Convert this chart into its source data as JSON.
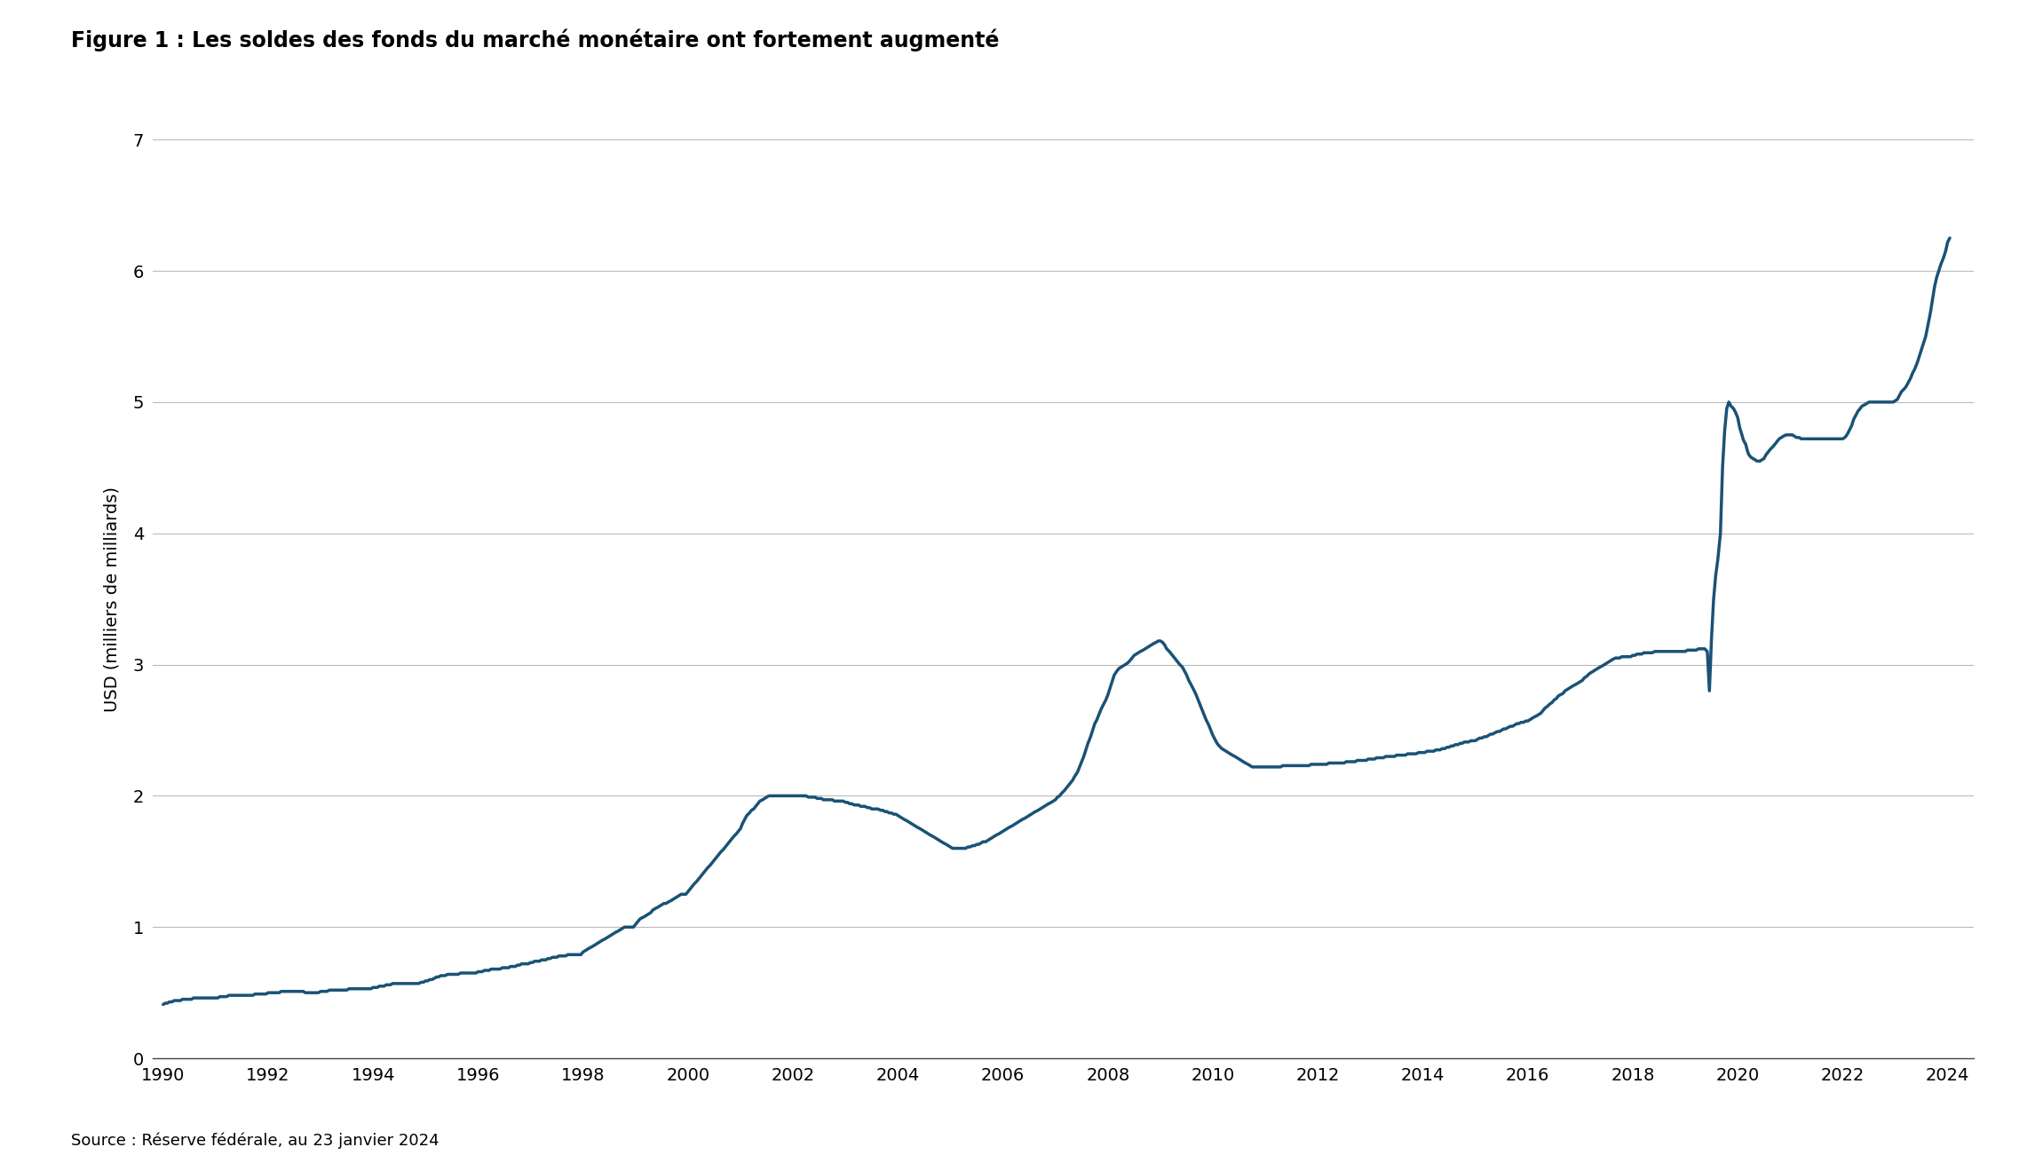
{
  "title": "Figure 1 : Les soldes des fonds du marché monétaire ont fortement augmenté",
  "ylabel": "USD (milliers de milliards)",
  "source": "Source : Réserve fédérale, au 23 janvier 2024",
  "line_color": "#1a5276",
  "background_color": "#ffffff",
  "ylim": [
    0,
    7
  ],
  "yticks": [
    0,
    1,
    2,
    3,
    4,
    5,
    6,
    7
  ],
  "title_fontsize": 17,
  "label_fontsize": 14,
  "tick_fontsize": 14,
  "source_fontsize": 13,
  "line_width": 2.5,
  "dates": [
    1990.0,
    1990.04,
    1990.08,
    1990.12,
    1990.17,
    1990.21,
    1990.25,
    1990.29,
    1990.33,
    1990.37,
    1990.42,
    1990.46,
    1990.5,
    1990.54,
    1990.58,
    1990.62,
    1990.67,
    1990.71,
    1990.75,
    1990.79,
    1990.83,
    1990.87,
    1990.92,
    1990.96,
    1991.0,
    1991.04,
    1991.08,
    1991.12,
    1991.17,
    1991.21,
    1991.25,
    1991.29,
    1991.33,
    1991.37,
    1991.42,
    1991.46,
    1991.5,
    1991.54,
    1991.58,
    1991.62,
    1991.67,
    1991.71,
    1991.75,
    1991.79,
    1991.83,
    1991.87,
    1991.92,
    1991.96,
    1992.0,
    1992.04,
    1992.08,
    1992.12,
    1992.17,
    1992.21,
    1992.25,
    1992.29,
    1992.33,
    1992.37,
    1992.42,
    1992.46,
    1992.5,
    1992.54,
    1992.58,
    1992.62,
    1992.67,
    1992.71,
    1992.75,
    1992.79,
    1992.83,
    1992.87,
    1992.92,
    1992.96,
    1993.0,
    1993.04,
    1993.08,
    1993.12,
    1993.17,
    1993.21,
    1993.25,
    1993.29,
    1993.33,
    1993.37,
    1993.42,
    1993.46,
    1993.5,
    1993.54,
    1993.58,
    1993.62,
    1993.67,
    1993.71,
    1993.75,
    1993.79,
    1993.83,
    1993.87,
    1993.92,
    1993.96,
    1994.0,
    1994.04,
    1994.08,
    1994.12,
    1994.17,
    1994.21,
    1994.25,
    1994.29,
    1994.33,
    1994.37,
    1994.42,
    1994.46,
    1994.5,
    1994.54,
    1994.58,
    1994.62,
    1994.67,
    1994.71,
    1994.75,
    1994.79,
    1994.83,
    1994.87,
    1994.92,
    1994.96,
    1995.0,
    1995.04,
    1995.08,
    1995.12,
    1995.17,
    1995.21,
    1995.25,
    1995.29,
    1995.33,
    1995.37,
    1995.42,
    1995.46,
    1995.5,
    1995.54,
    1995.58,
    1995.62,
    1995.67,
    1995.71,
    1995.75,
    1995.79,
    1995.83,
    1995.87,
    1995.92,
    1995.96,
    1996.0,
    1996.04,
    1996.08,
    1996.12,
    1996.17,
    1996.21,
    1996.25,
    1996.29,
    1996.33,
    1996.37,
    1996.42,
    1996.46,
    1996.5,
    1996.54,
    1996.58,
    1996.62,
    1996.67,
    1996.71,
    1996.75,
    1996.79,
    1996.83,
    1996.87,
    1996.92,
    1996.96,
    1997.0,
    1997.04,
    1997.08,
    1997.12,
    1997.17,
    1997.21,
    1997.25,
    1997.29,
    1997.33,
    1997.37,
    1997.42,
    1997.46,
    1997.5,
    1997.54,
    1997.58,
    1997.62,
    1997.67,
    1997.71,
    1997.75,
    1997.79,
    1997.83,
    1997.87,
    1997.92,
    1997.96,
    1998.0,
    1998.04,
    1998.08,
    1998.12,
    1998.17,
    1998.21,
    1998.25,
    1998.29,
    1998.33,
    1998.37,
    1998.42,
    1998.46,
    1998.5,
    1998.54,
    1998.58,
    1998.62,
    1998.67,
    1998.71,
    1998.75,
    1998.79,
    1998.83,
    1998.87,
    1998.92,
    1998.96,
    1999.0,
    1999.04,
    1999.08,
    1999.12,
    1999.17,
    1999.21,
    1999.25,
    1999.29,
    1999.33,
    1999.37,
    1999.42,
    1999.46,
    1999.5,
    1999.54,
    1999.58,
    1999.62,
    1999.67,
    1999.71,
    1999.75,
    1999.79,
    1999.83,
    1999.87,
    1999.92,
    1999.96,
    2000.0,
    2000.04,
    2000.08,
    2000.12,
    2000.17,
    2000.21,
    2000.25,
    2000.29,
    2000.33,
    2000.37,
    2000.42,
    2000.46,
    2000.5,
    2000.54,
    2000.58,
    2000.62,
    2000.67,
    2000.71,
    2000.75,
    2000.79,
    2000.83,
    2000.87,
    2000.92,
    2000.96,
    2001.0,
    2001.04,
    2001.08,
    2001.12,
    2001.17,
    2001.21,
    2001.25,
    2001.29,
    2001.33,
    2001.37,
    2001.42,
    2001.46,
    2001.5,
    2001.54,
    2001.58,
    2001.62,
    2001.67,
    2001.71,
    2001.75,
    2001.79,
    2001.83,
    2001.87,
    2001.92,
    2001.96,
    2002.0,
    2002.04,
    2002.08,
    2002.12,
    2002.17,
    2002.21,
    2002.25,
    2002.29,
    2002.33,
    2002.37,
    2002.42,
    2002.46,
    2002.5,
    2002.54,
    2002.58,
    2002.62,
    2002.67,
    2002.71,
    2002.75,
    2002.79,
    2002.83,
    2002.87,
    2002.92,
    2002.96,
    2003.0,
    2003.04,
    2003.08,
    2003.12,
    2003.17,
    2003.21,
    2003.25,
    2003.29,
    2003.33,
    2003.37,
    2003.42,
    2003.46,
    2003.5,
    2003.54,
    2003.58,
    2003.62,
    2003.67,
    2003.71,
    2003.75,
    2003.79,
    2003.83,
    2003.87,
    2003.92,
    2003.96,
    2004.0,
    2004.04,
    2004.08,
    2004.12,
    2004.17,
    2004.21,
    2004.25,
    2004.29,
    2004.33,
    2004.37,
    2004.42,
    2004.46,
    2004.5,
    2004.54,
    2004.58,
    2004.62,
    2004.67,
    2004.71,
    2004.75,
    2004.79,
    2004.83,
    2004.87,
    2004.92,
    2004.96,
    2005.0,
    2005.04,
    2005.08,
    2005.12,
    2005.17,
    2005.21,
    2005.25,
    2005.29,
    2005.33,
    2005.37,
    2005.42,
    2005.46,
    2005.5,
    2005.54,
    2005.58,
    2005.62,
    2005.67,
    2005.71,
    2005.75,
    2005.79,
    2005.83,
    2005.87,
    2005.92,
    2005.96,
    2006.0,
    2006.04,
    2006.08,
    2006.12,
    2006.17,
    2006.21,
    2006.25,
    2006.29,
    2006.33,
    2006.37,
    2006.42,
    2006.46,
    2006.5,
    2006.54,
    2006.58,
    2006.62,
    2006.67,
    2006.71,
    2006.75,
    2006.79,
    2006.83,
    2006.87,
    2006.92,
    2006.96,
    2007.0,
    2007.04,
    2007.08,
    2007.12,
    2007.17,
    2007.21,
    2007.25,
    2007.29,
    2007.33,
    2007.37,
    2007.42,
    2007.46,
    2007.5,
    2007.54,
    2007.58,
    2007.62,
    2007.67,
    2007.71,
    2007.75,
    2007.79,
    2007.83,
    2007.87,
    2007.92,
    2007.96,
    2008.0,
    2008.04,
    2008.08,
    2008.12,
    2008.17,
    2008.21,
    2008.25,
    2008.29,
    2008.33,
    2008.37,
    2008.42,
    2008.46,
    2008.5,
    2008.54,
    2008.58,
    2008.62,
    2008.67,
    2008.71,
    2008.75,
    2008.79,
    2008.83,
    2008.87,
    2008.92,
    2008.96,
    2009.0,
    2009.04,
    2009.08,
    2009.12,
    2009.17,
    2009.21,
    2009.25,
    2009.29,
    2009.33,
    2009.37,
    2009.42,
    2009.46,
    2009.5,
    2009.54,
    2009.58,
    2009.62,
    2009.67,
    2009.71,
    2009.75,
    2009.79,
    2009.83,
    2009.87,
    2009.92,
    2009.96,
    2010.0,
    2010.04,
    2010.08,
    2010.12,
    2010.17,
    2010.21,
    2010.25,
    2010.29,
    2010.33,
    2010.37,
    2010.42,
    2010.46,
    2010.5,
    2010.54,
    2010.58,
    2010.62,
    2010.67,
    2010.71,
    2010.75,
    2010.79,
    2010.83,
    2010.87,
    2010.92,
    2010.96,
    2011.0,
    2011.04,
    2011.08,
    2011.12,
    2011.17,
    2011.21,
    2011.25,
    2011.29,
    2011.33,
    2011.37,
    2011.42,
    2011.46,
    2011.5,
    2011.54,
    2011.58,
    2011.62,
    2011.67,
    2011.71,
    2011.75,
    2011.79,
    2011.83,
    2011.87,
    2011.92,
    2011.96,
    2012.0,
    2012.04,
    2012.08,
    2012.12,
    2012.17,
    2012.21,
    2012.25,
    2012.29,
    2012.33,
    2012.37,
    2012.42,
    2012.46,
    2012.5,
    2012.54,
    2012.58,
    2012.62,
    2012.67,
    2012.71,
    2012.75,
    2012.79,
    2012.83,
    2012.87,
    2012.92,
    2012.96,
    2013.0,
    2013.04,
    2013.08,
    2013.12,
    2013.17,
    2013.21,
    2013.25,
    2013.29,
    2013.33,
    2013.37,
    2013.42,
    2013.46,
    2013.5,
    2013.54,
    2013.58,
    2013.62,
    2013.67,
    2013.71,
    2013.75,
    2013.79,
    2013.83,
    2013.87,
    2013.92,
    2013.96,
    2014.0,
    2014.04,
    2014.08,
    2014.12,
    2014.17,
    2014.21,
    2014.25,
    2014.29,
    2014.33,
    2014.37,
    2014.42,
    2014.46,
    2014.5,
    2014.54,
    2014.58,
    2014.62,
    2014.67,
    2014.71,
    2014.75,
    2014.79,
    2014.83,
    2014.87,
    2014.92,
    2014.96,
    2015.0,
    2015.04,
    2015.08,
    2015.12,
    2015.17,
    2015.21,
    2015.25,
    2015.29,
    2015.33,
    2015.37,
    2015.42,
    2015.46,
    2015.5,
    2015.54,
    2015.58,
    2015.62,
    2015.67,
    2015.71,
    2015.75,
    2015.79,
    2015.83,
    2015.87,
    2015.92,
    2015.96,
    2016.0,
    2016.04,
    2016.08,
    2016.12,
    2016.17,
    2016.21,
    2016.25,
    2016.29,
    2016.33,
    2016.37,
    2016.42,
    2016.46,
    2016.5,
    2016.54,
    2016.58,
    2016.62,
    2016.67,
    2016.71,
    2016.75,
    2016.79,
    2016.83,
    2016.87,
    2016.92,
    2016.96,
    2017.0,
    2017.04,
    2017.08,
    2017.12,
    2017.17,
    2017.21,
    2017.25,
    2017.29,
    2017.33,
    2017.37,
    2017.42,
    2017.46,
    2017.5,
    2017.54,
    2017.58,
    2017.62,
    2017.67,
    2017.71,
    2017.75,
    2017.79,
    2017.83,
    2017.87,
    2017.92,
    2017.96,
    2018.0,
    2018.04,
    2018.08,
    2018.12,
    2018.17,
    2018.21,
    2018.25,
    2018.29,
    2018.33,
    2018.37,
    2018.42,
    2018.46,
    2018.5,
    2018.54,
    2018.58,
    2018.62,
    2018.67,
    2018.71,
    2018.75,
    2018.79,
    2018.83,
    2018.87,
    2018.92,
    2018.96,
    2019.0,
    2019.04,
    2019.08,
    2019.12,
    2019.17,
    2019.21,
    2019.25,
    2019.29,
    2019.33,
    2019.37,
    2019.42,
    2019.46,
    2019.5,
    2019.54,
    2019.58,
    2019.62,
    2019.67,
    2019.71,
    2019.75,
    2019.79,
    2019.83,
    2019.87,
    2019.92,
    2019.96,
    2020.0,
    2020.04,
    2020.08,
    2020.1,
    2020.12,
    2020.15,
    2020.17,
    2020.19,
    2020.21,
    2020.25,
    2020.29,
    2020.33,
    2020.37,
    2020.42,
    2020.46,
    2020.5,
    2020.54,
    2020.58,
    2020.62,
    2020.67,
    2020.71,
    2020.75,
    2020.79,
    2020.83,
    2020.87,
    2020.92,
    2020.96,
    2021.0,
    2021.04,
    2021.08,
    2021.12,
    2021.17,
    2021.21,
    2021.25,
    2021.29,
    2021.33,
    2021.37,
    2021.42,
    2021.46,
    2021.5,
    2021.54,
    2021.58,
    2021.62,
    2021.67,
    2021.71,
    2021.75,
    2021.79,
    2021.83,
    2021.87,
    2021.92,
    2021.96,
    2022.0,
    2022.04,
    2022.08,
    2022.12,
    2022.17,
    2022.21,
    2022.25,
    2022.29,
    2022.33,
    2022.37,
    2022.42,
    2022.46,
    2022.5,
    2022.54,
    2022.58,
    2022.62,
    2022.67,
    2022.71,
    2022.75,
    2022.79,
    2022.83,
    2022.87,
    2022.92,
    2022.96,
    2023.0,
    2023.04,
    2023.08,
    2023.12,
    2023.17,
    2023.21,
    2023.25,
    2023.29,
    2023.33,
    2023.37,
    2023.42,
    2023.46,
    2023.5,
    2023.54,
    2023.58,
    2023.62,
    2023.67,
    2023.71,
    2023.75,
    2023.79,
    2023.83,
    2023.87,
    2023.92,
    2023.96,
    2024.0,
    2024.04
  ],
  "values": [
    0.41,
    0.42,
    0.42,
    0.43,
    0.43,
    0.44,
    0.44,
    0.44,
    0.44,
    0.45,
    0.45,
    0.45,
    0.45,
    0.45,
    0.46,
    0.46,
    0.46,
    0.46,
    0.46,
    0.46,
    0.46,
    0.46,
    0.46,
    0.46,
    0.46,
    0.46,
    0.47,
    0.47,
    0.47,
    0.47,
    0.48,
    0.48,
    0.48,
    0.48,
    0.48,
    0.48,
    0.48,
    0.48,
    0.48,
    0.48,
    0.48,
    0.48,
    0.49,
    0.49,
    0.49,
    0.49,
    0.49,
    0.49,
    0.5,
    0.5,
    0.5,
    0.5,
    0.5,
    0.5,
    0.51,
    0.51,
    0.51,
    0.51,
    0.51,
    0.51,
    0.51,
    0.51,
    0.51,
    0.51,
    0.51,
    0.5,
    0.5,
    0.5,
    0.5,
    0.5,
    0.5,
    0.5,
    0.51,
    0.51,
    0.51,
    0.51,
    0.52,
    0.52,
    0.52,
    0.52,
    0.52,
    0.52,
    0.52,
    0.52,
    0.52,
    0.53,
    0.53,
    0.53,
    0.53,
    0.53,
    0.53,
    0.53,
    0.53,
    0.53,
    0.53,
    0.53,
    0.54,
    0.54,
    0.54,
    0.55,
    0.55,
    0.55,
    0.56,
    0.56,
    0.56,
    0.57,
    0.57,
    0.57,
    0.57,
    0.57,
    0.57,
    0.57,
    0.57,
    0.57,
    0.57,
    0.57,
    0.57,
    0.57,
    0.58,
    0.58,
    0.59,
    0.59,
    0.6,
    0.6,
    0.61,
    0.62,
    0.62,
    0.63,
    0.63,
    0.63,
    0.64,
    0.64,
    0.64,
    0.64,
    0.64,
    0.64,
    0.65,
    0.65,
    0.65,
    0.65,
    0.65,
    0.65,
    0.65,
    0.65,
    0.66,
    0.66,
    0.66,
    0.67,
    0.67,
    0.67,
    0.68,
    0.68,
    0.68,
    0.68,
    0.68,
    0.69,
    0.69,
    0.69,
    0.69,
    0.7,
    0.7,
    0.7,
    0.71,
    0.71,
    0.72,
    0.72,
    0.72,
    0.72,
    0.73,
    0.73,
    0.74,
    0.74,
    0.74,
    0.75,
    0.75,
    0.75,
    0.76,
    0.76,
    0.77,
    0.77,
    0.77,
    0.78,
    0.78,
    0.78,
    0.78,
    0.79,
    0.79,
    0.79,
    0.79,
    0.79,
    0.79,
    0.79,
    0.81,
    0.82,
    0.83,
    0.84,
    0.85,
    0.86,
    0.87,
    0.88,
    0.89,
    0.9,
    0.91,
    0.92,
    0.93,
    0.94,
    0.95,
    0.96,
    0.97,
    0.98,
    0.99,
    1.0,
    1.0,
    1.0,
    1.0,
    1.0,
    1.02,
    1.04,
    1.06,
    1.07,
    1.08,
    1.09,
    1.1,
    1.11,
    1.13,
    1.14,
    1.15,
    1.16,
    1.17,
    1.18,
    1.18,
    1.19,
    1.2,
    1.21,
    1.22,
    1.23,
    1.24,
    1.25,
    1.25,
    1.25,
    1.27,
    1.29,
    1.31,
    1.33,
    1.35,
    1.37,
    1.39,
    1.41,
    1.43,
    1.45,
    1.47,
    1.49,
    1.51,
    1.53,
    1.55,
    1.57,
    1.59,
    1.61,
    1.63,
    1.65,
    1.67,
    1.69,
    1.71,
    1.73,
    1.75,
    1.79,
    1.82,
    1.85,
    1.87,
    1.89,
    1.9,
    1.92,
    1.94,
    1.96,
    1.97,
    1.98,
    1.99,
    2.0,
    2.0,
    2.0,
    2.0,
    2.0,
    2.0,
    2.0,
    2.0,
    2.0,
    2.0,
    2.0,
    2.0,
    2.0,
    2.0,
    2.0,
    2.0,
    2.0,
    2.0,
    1.99,
    1.99,
    1.99,
    1.99,
    1.98,
    1.98,
    1.98,
    1.97,
    1.97,
    1.97,
    1.97,
    1.97,
    1.96,
    1.96,
    1.96,
    1.96,
    1.96,
    1.95,
    1.95,
    1.94,
    1.94,
    1.93,
    1.93,
    1.93,
    1.92,
    1.92,
    1.92,
    1.91,
    1.91,
    1.9,
    1.9,
    1.9,
    1.9,
    1.89,
    1.89,
    1.88,
    1.88,
    1.87,
    1.87,
    1.86,
    1.86,
    1.85,
    1.84,
    1.83,
    1.82,
    1.81,
    1.8,
    1.79,
    1.78,
    1.77,
    1.76,
    1.75,
    1.74,
    1.73,
    1.72,
    1.71,
    1.7,
    1.69,
    1.68,
    1.67,
    1.66,
    1.65,
    1.64,
    1.63,
    1.62,
    1.61,
    1.6,
    1.6,
    1.6,
    1.6,
    1.6,
    1.6,
    1.6,
    1.61,
    1.61,
    1.62,
    1.62,
    1.63,
    1.63,
    1.64,
    1.65,
    1.65,
    1.66,
    1.67,
    1.68,
    1.69,
    1.7,
    1.71,
    1.72,
    1.73,
    1.74,
    1.75,
    1.76,
    1.77,
    1.78,
    1.79,
    1.8,
    1.81,
    1.82,
    1.83,
    1.84,
    1.85,
    1.86,
    1.87,
    1.88,
    1.89,
    1.9,
    1.91,
    1.92,
    1.93,
    1.94,
    1.95,
    1.96,
    1.97,
    1.99,
    2.0,
    2.02,
    2.04,
    2.06,
    2.08,
    2.1,
    2.12,
    2.15,
    2.18,
    2.22,
    2.26,
    2.3,
    2.35,
    2.4,
    2.45,
    2.5,
    2.55,
    2.58,
    2.62,
    2.66,
    2.7,
    2.73,
    2.77,
    2.82,
    2.87,
    2.92,
    2.95,
    2.97,
    2.98,
    2.99,
    3.0,
    3.01,
    3.03,
    3.05,
    3.07,
    3.08,
    3.09,
    3.1,
    3.11,
    3.12,
    3.13,
    3.14,
    3.15,
    3.16,
    3.17,
    3.18,
    3.18,
    3.17,
    3.15,
    3.12,
    3.1,
    3.08,
    3.06,
    3.04,
    3.02,
    3.0,
    2.98,
    2.95,
    2.92,
    2.88,
    2.85,
    2.82,
    2.78,
    2.74,
    2.7,
    2.66,
    2.62,
    2.58,
    2.54,
    2.5,
    2.46,
    2.43,
    2.4,
    2.38,
    2.36,
    2.35,
    2.34,
    2.33,
    2.32,
    2.31,
    2.3,
    2.29,
    2.28,
    2.27,
    2.26,
    2.25,
    2.24,
    2.23,
    2.22,
    2.22,
    2.22,
    2.22,
    2.22,
    2.22,
    2.22,
    2.22,
    2.22,
    2.22,
    2.22,
    2.22,
    2.22,
    2.22,
    2.23,
    2.23,
    2.23,
    2.23,
    2.23,
    2.23,
    2.23,
    2.23,
    2.23,
    2.23,
    2.23,
    2.23,
    2.23,
    2.24,
    2.24,
    2.24,
    2.24,
    2.24,
    2.24,
    2.24,
    2.24,
    2.25,
    2.25,
    2.25,
    2.25,
    2.25,
    2.25,
    2.25,
    2.25,
    2.26,
    2.26,
    2.26,
    2.26,
    2.26,
    2.27,
    2.27,
    2.27,
    2.27,
    2.27,
    2.28,
    2.28,
    2.28,
    2.28,
    2.29,
    2.29,
    2.29,
    2.29,
    2.3,
    2.3,
    2.3,
    2.3,
    2.3,
    2.31,
    2.31,
    2.31,
    2.31,
    2.31,
    2.32,
    2.32,
    2.32,
    2.32,
    2.32,
    2.33,
    2.33,
    2.33,
    2.33,
    2.34,
    2.34,
    2.34,
    2.34,
    2.35,
    2.35,
    2.35,
    2.36,
    2.36,
    2.37,
    2.37,
    2.38,
    2.38,
    2.39,
    2.39,
    2.4,
    2.4,
    2.41,
    2.41,
    2.41,
    2.42,
    2.42,
    2.42,
    2.43,
    2.44,
    2.44,
    2.45,
    2.45,
    2.46,
    2.47,
    2.47,
    2.48,
    2.49,
    2.49,
    2.5,
    2.51,
    2.51,
    2.52,
    2.53,
    2.53,
    2.54,
    2.55,
    2.55,
    2.56,
    2.56,
    2.57,
    2.57,
    2.58,
    2.59,
    2.6,
    2.61,
    2.62,
    2.63,
    2.65,
    2.67,
    2.68,
    2.7,
    2.71,
    2.73,
    2.74,
    2.76,
    2.77,
    2.78,
    2.8,
    2.81,
    2.82,
    2.83,
    2.84,
    2.85,
    2.86,
    2.87,
    2.88,
    2.9,
    2.91,
    2.93,
    2.94,
    2.95,
    2.96,
    2.97,
    2.98,
    2.99,
    3.0,
    3.01,
    3.02,
    3.03,
    3.04,
    3.05,
    3.05,
    3.05,
    3.06,
    3.06,
    3.06,
    3.06,
    3.06,
    3.07,
    3.07,
    3.08,
    3.08,
    3.08,
    3.09,
    3.09,
    3.09,
    3.09,
    3.09,
    3.1,
    3.1,
    3.1,
    3.1,
    3.1,
    3.1,
    3.1,
    3.1,
    3.1,
    3.1,
    3.1,
    3.1,
    3.1,
    3.1,
    3.1,
    3.11,
    3.11,
    3.11,
    3.11,
    3.11,
    3.12,
    3.12,
    3.12,
    3.12,
    3.1,
    2.8,
    3.2,
    3.5,
    3.68,
    3.8,
    4.0,
    4.5,
    4.78,
    4.95,
    5.0,
    4.97,
    4.95,
    4.92,
    4.88,
    4.8,
    4.75,
    4.72,
    4.7,
    4.68,
    4.65,
    4.62,
    4.6,
    4.58,
    4.57,
    4.56,
    4.55,
    4.55,
    4.56,
    4.57,
    4.6,
    4.62,
    4.64,
    4.66,
    4.68,
    4.7,
    4.72,
    4.73,
    4.74,
    4.75,
    4.75,
    4.75,
    4.75,
    4.74,
    4.73,
    4.73,
    4.72,
    4.72,
    4.72,
    4.72,
    4.72,
    4.72,
    4.72,
    4.72,
    4.72,
    4.72,
    4.72,
    4.72,
    4.72,
    4.72,
    4.72,
    4.72,
    4.72,
    4.72,
    4.72,
    4.72,
    4.73,
    4.75,
    4.78,
    4.82,
    4.87,
    4.9,
    4.93,
    4.95,
    4.97,
    4.98,
    4.99,
    5.0,
    5.0,
    5.0,
    5.0,
    5.0,
    5.0,
    5.0,
    5.0,
    5.0,
    5.0,
    5.0,
    5.0,
    5.01,
    5.02,
    5.05,
    5.08,
    5.1,
    5.12,
    5.15,
    5.18,
    5.22,
    5.25,
    5.3,
    5.35,
    5.4,
    5.45,
    5.5,
    5.58,
    5.68,
    5.78,
    5.88,
    5.95,
    6.0,
    6.05,
    6.1,
    6.15,
    6.22,
    6.25
  ]
}
